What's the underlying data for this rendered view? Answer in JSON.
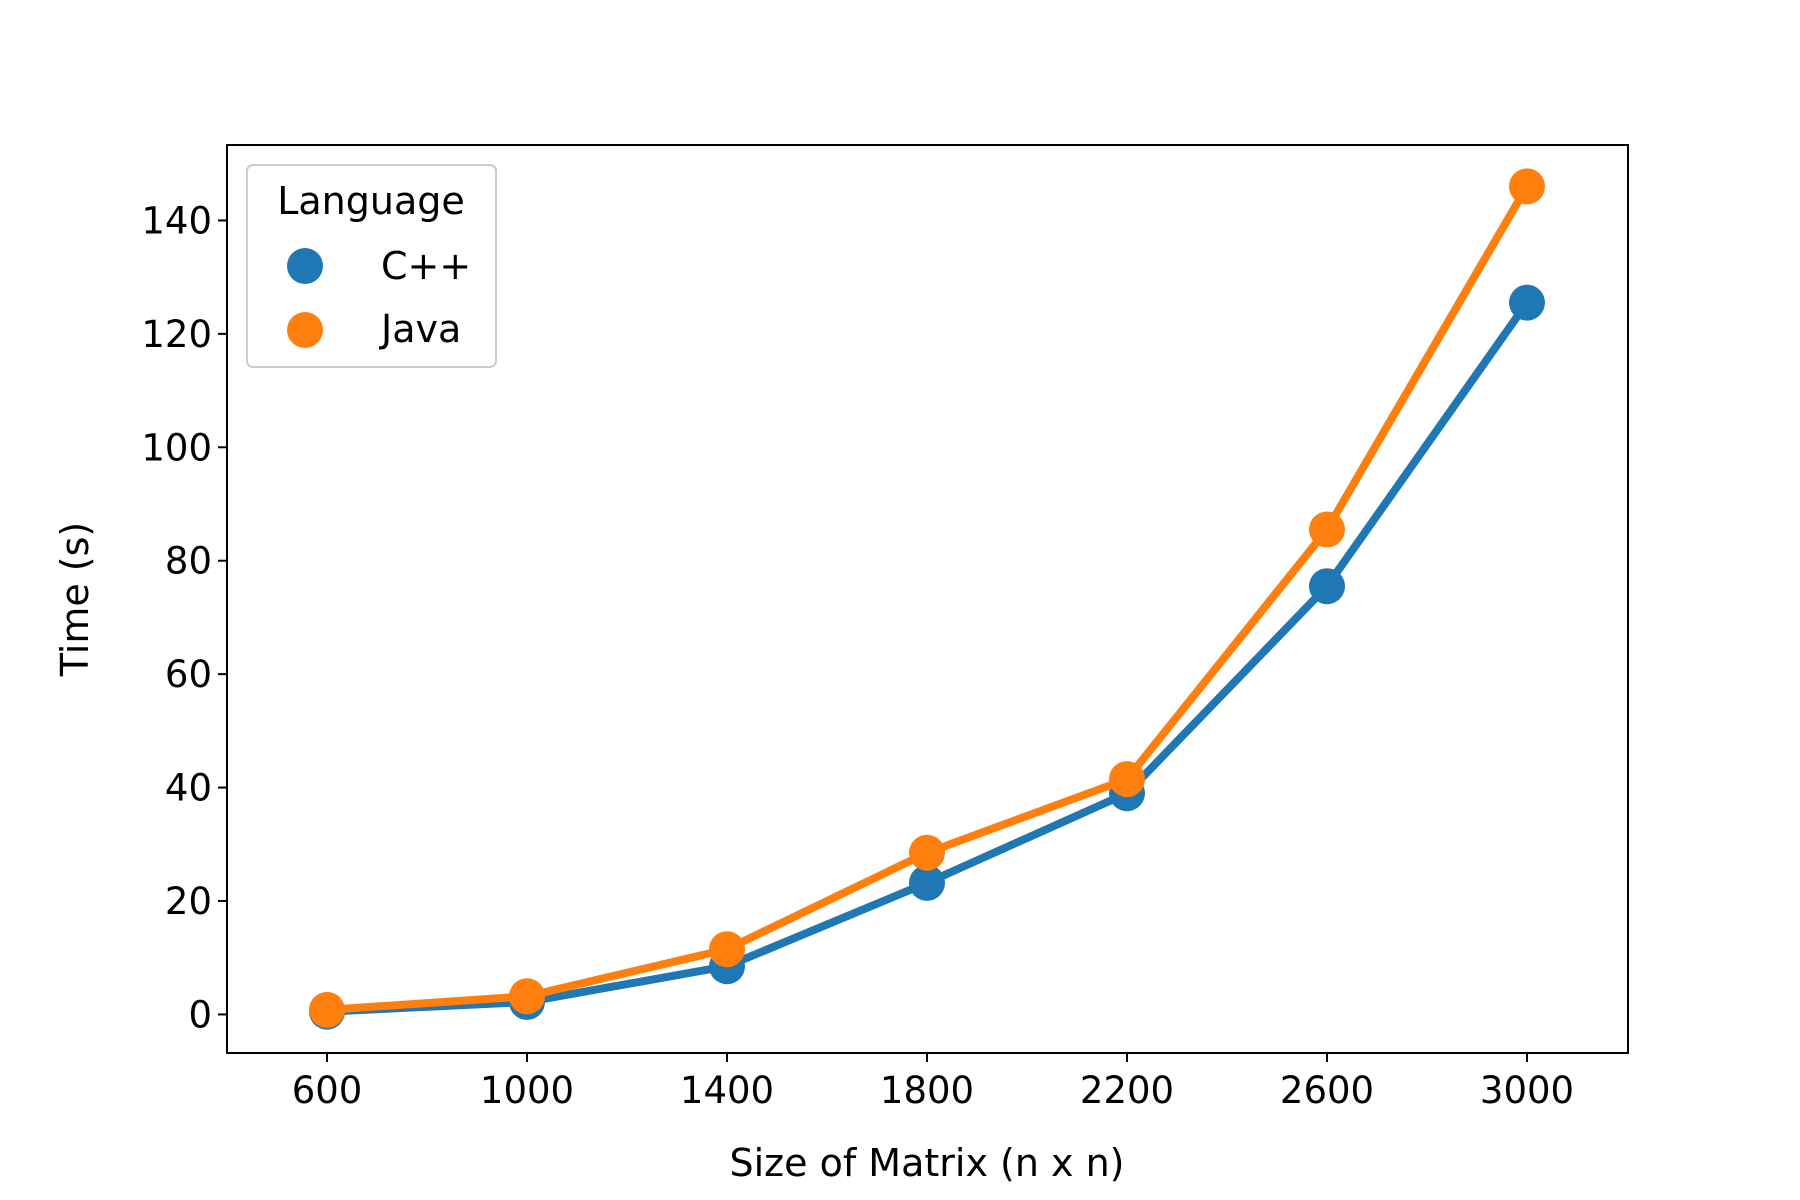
{
  "chart_data": {
    "type": "line",
    "x": [
      600,
      1000,
      1400,
      1800,
      2200,
      2600,
      3000
    ],
    "series": [
      {
        "name": "C++",
        "values": [
          0.5,
          2.2,
          8.5,
          23.2,
          39.0,
          75.5,
          125.5
        ],
        "color": "#1f77b4"
      },
      {
        "name": "Java",
        "values": [
          0.8,
          3.2,
          11.5,
          28.5,
          41.5,
          85.5,
          146.0
        ],
        "color": "#ff7f0e"
      }
    ],
    "xlabel": "Size of Matrix (n x n)",
    "ylabel": "Time (s)",
    "x_ticks": [
      "600",
      "1000",
      "1400",
      "1800",
      "2200",
      "2600",
      "3000"
    ],
    "y_ticks": [
      "0",
      "20",
      "40",
      "60",
      "80",
      "100",
      "120",
      "140"
    ],
    "ylim": [
      -6.8,
      153.3
    ],
    "legend": {
      "title": "Language",
      "placement": "top-left"
    },
    "grid": false
  }
}
